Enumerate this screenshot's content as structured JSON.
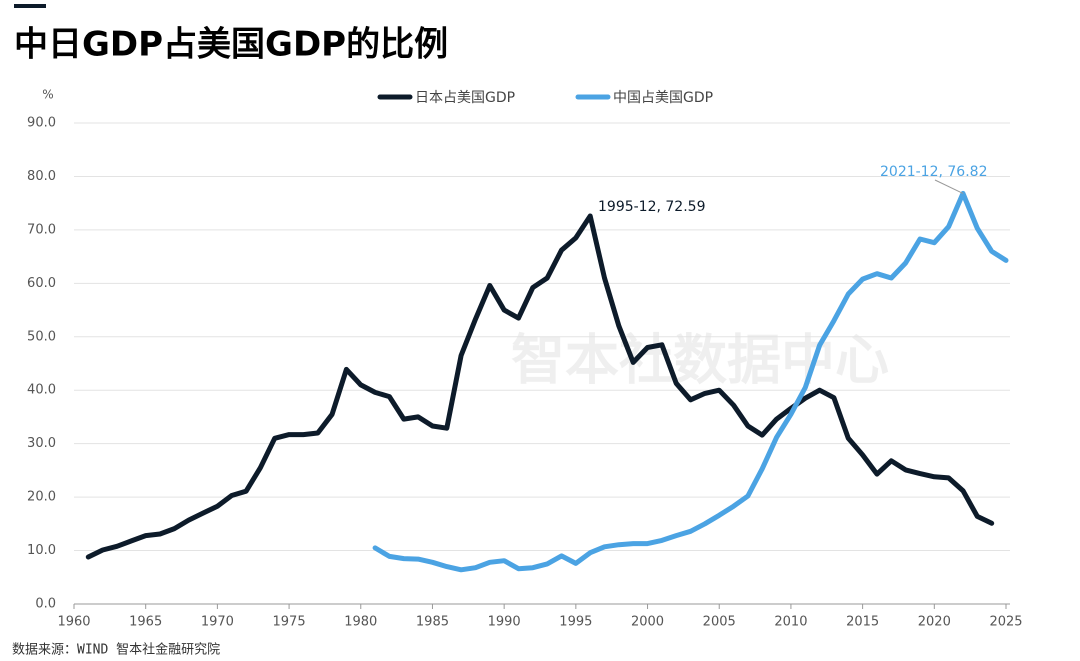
{
  "chart_data": {
    "type": "line",
    "title": "中日GDP占美国GDP的比例",
    "y_label": "%",
    "source": "数据来源：WIND 智本社金融研究院",
    "watermark": "智本社数据中心",
    "x": [
      1961,
      1962,
      1963,
      1964,
      1965,
      1966,
      1967,
      1968,
      1969,
      1970,
      1971,
      1972,
      1973,
      1974,
      1975,
      1976,
      1977,
      1978,
      1979,
      1980,
      1981,
      1982,
      1983,
      1984,
      1985,
      1986,
      1987,
      1988,
      1989,
      1990,
      1991,
      1992,
      1993,
      1994,
      1995,
      1996,
      1997,
      1998,
      1999,
      2000,
      2001,
      2002,
      2003,
      2004,
      2005,
      2006,
      2007,
      2008,
      2009,
      2010,
      2011,
      2012,
      2013,
      2014,
      2015,
      2016,
      2017,
      2018,
      2019,
      2020,
      2021,
      2022,
      2023,
      2024,
      2025
    ],
    "series": [
      {
        "name": "日本占美国GDP",
        "color": "#0d1b2a",
        "values": [
          8.8,
          10.1,
          10.8,
          11.8,
          12.8,
          13.1,
          14.1,
          15.7,
          17.0,
          18.3,
          20.3,
          21.1,
          25.5,
          31.0,
          31.7,
          31.7,
          32.0,
          35.5,
          43.9,
          41.0,
          39.6,
          38.8,
          34.6,
          35.0,
          33.3,
          32.9,
          46.5,
          53.3,
          59.6,
          55.0,
          53.5,
          59.2,
          61.0,
          66.2,
          68.5,
          72.59,
          61.0,
          52.0,
          45.2,
          48.0,
          48.5,
          41.3,
          38.2,
          39.4,
          40.0,
          37.2,
          33.3,
          31.6,
          34.6,
          36.6,
          38.5,
          40.0,
          38.6,
          31.0,
          27.9,
          24.3,
          26.8,
          25.1,
          24.4,
          23.8,
          23.6,
          21.2,
          16.4,
          15.1,
          null
        ]
      },
      {
        "name": "中国占美国GDP",
        "color": "#4ba3e3",
        "values": [
          null,
          null,
          null,
          null,
          null,
          null,
          null,
          null,
          null,
          null,
          null,
          null,
          null,
          null,
          null,
          null,
          null,
          null,
          null,
          null,
          10.5,
          8.9,
          8.5,
          8.4,
          7.8,
          7.0,
          6.4,
          6.8,
          7.8,
          8.1,
          6.6,
          6.8,
          7.5,
          9.0,
          7.6,
          9.6,
          10.7,
          11.1,
          11.3,
          11.3,
          11.9,
          12.8,
          13.6,
          15.0,
          16.6,
          18.3,
          20.2,
          25.3,
          31.2,
          35.5,
          40.5,
          48.4,
          53.0,
          58.0,
          60.8,
          61.8,
          61.0,
          63.8,
          68.3,
          67.6,
          70.6,
          76.82,
          70.3,
          66.0,
          64.3
        ]
      }
    ],
    "annotations": [
      {
        "text": "1995-12, 72.59",
        "color": "#0d1b2a"
      },
      {
        "text": "2021-12, 76.82",
        "color": "#4ba3e3"
      }
    ],
    "xlim": [
      1960,
      2025
    ],
    "xticks": [
      1960,
      1965,
      1970,
      1975,
      1980,
      1985,
      1990,
      1995,
      2000,
      2005,
      2010,
      2015,
      2020,
      2025
    ],
    "ylim": [
      0,
      90
    ],
    "yticks": [
      {
        "value": 0,
        "label": "0.0"
      },
      {
        "value": 10,
        "label": "10.0"
      },
      {
        "value": 20,
        "label": "20.0"
      },
      {
        "value": 30,
        "label": "30.0"
      },
      {
        "value": 40,
        "label": "40.0"
      },
      {
        "value": 50,
        "label": "50.0"
      },
      {
        "value": 60,
        "label": "60.0"
      },
      {
        "value": 70,
        "label": "70.0"
      },
      {
        "value": 80,
        "label": "80.0"
      },
      {
        "value": 90,
        "label": "90.0"
      }
    ],
    "grid": true
  }
}
